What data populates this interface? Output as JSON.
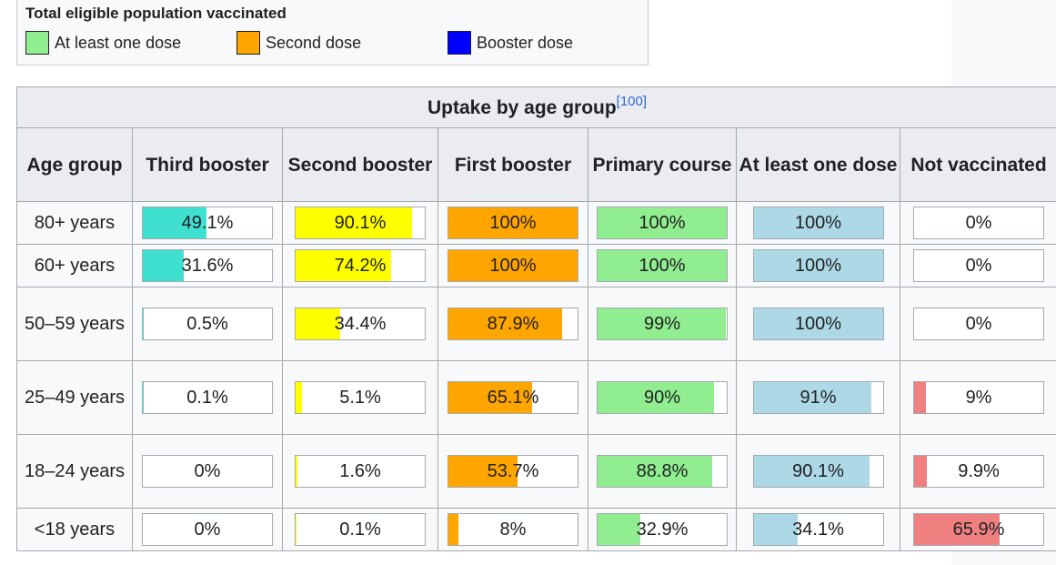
{
  "legend": {
    "title": "Total eligible population vaccinated",
    "items": [
      {
        "label": "At least one dose",
        "color": "#90ee90"
      },
      {
        "label": "Second dose",
        "color": "#ffa500"
      },
      {
        "label": "Booster dose",
        "color": "#0000ff"
      }
    ]
  },
  "table": {
    "caption": "Uptake by age group",
    "caption_ref": "[100]",
    "columns": [
      {
        "label": "Age group",
        "color": null
      },
      {
        "label": "Third booster",
        "color": "#40e0d0"
      },
      {
        "label": "Second booster",
        "color": "#ffff00"
      },
      {
        "label": "First booster",
        "color": "#ffa500"
      },
      {
        "label": "Primary course",
        "color": "#90ee90"
      },
      {
        "label": "At least one dose",
        "color": "#add8e6"
      },
      {
        "label": "Not vaccinated",
        "color": "#f08080"
      }
    ],
    "rows": [
      {
        "age": "80+ years",
        "values": [
          {
            "text": "49.1%",
            "fill": 49.1
          },
          {
            "text": "90.1%",
            "fill": 90.1
          },
          {
            "text": "100%",
            "fill": 100
          },
          {
            "text": "100%",
            "fill": 100
          },
          {
            "text": "100%",
            "fill": 100
          },
          {
            "text": "0%",
            "fill": 0
          }
        ]
      },
      {
        "age": "60+ years",
        "values": [
          {
            "text": "31.6%",
            "fill": 31.6
          },
          {
            "text": "74.2%",
            "fill": 74.2
          },
          {
            "text": "100%",
            "fill": 100
          },
          {
            "text": "100%",
            "fill": 100
          },
          {
            "text": "100%",
            "fill": 100
          },
          {
            "text": "0%",
            "fill": 0
          }
        ]
      },
      {
        "age": "50–59 years",
        "values": [
          {
            "text": "0.5%",
            "fill": 0.5
          },
          {
            "text": "34.4%",
            "fill": 34.4
          },
          {
            "text": "87.9%",
            "fill": 87.9
          },
          {
            "text": "99%",
            "fill": 99
          },
          {
            "text": "100%",
            "fill": 100
          },
          {
            "text": "0%",
            "fill": 0
          }
        ]
      },
      {
        "age": "25–49 years",
        "values": [
          {
            "text": "0.1%",
            "fill": 0.1
          },
          {
            "text": "5.1%",
            "fill": 5.1
          },
          {
            "text": "65.1%",
            "fill": 65.1
          },
          {
            "text": "90%",
            "fill": 90
          },
          {
            "text": "91%",
            "fill": 91
          },
          {
            "text": "9%",
            "fill": 9
          }
        ]
      },
      {
        "age": "18–24 years",
        "values": [
          {
            "text": "0%",
            "fill": 0
          },
          {
            "text": "1.6%",
            "fill": 1.6
          },
          {
            "text": "53.7%",
            "fill": 53.7
          },
          {
            "text": "88.8%",
            "fill": 88.8
          },
          {
            "text": "90.1%",
            "fill": 90.1
          },
          {
            "text": "9.9%",
            "fill": 9.9
          }
        ]
      },
      {
        "age": "<18 years",
        "values": [
          {
            "text": "0%",
            "fill": 0
          },
          {
            "text": "0.1%",
            "fill": 0.1
          },
          {
            "text": "8%",
            "fill": 8
          },
          {
            "text": "32.9%",
            "fill": 32.9
          },
          {
            "text": "34.1%",
            "fill": 34.1
          },
          {
            "text": "65.9%",
            "fill": 65.9
          }
        ]
      }
    ]
  }
}
